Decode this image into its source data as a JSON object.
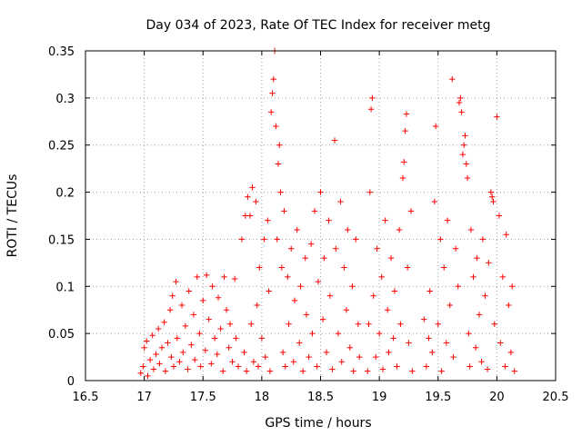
{
  "chart_data": {
    "type": "scatter",
    "title": "Day 034 of 2023, Rate Of TEC Index for receiver metg",
    "xlabel": "GPS time / hours",
    "ylabel": "ROTI / TECUs",
    "xlim": [
      16.5,
      20.5
    ],
    "ylim": [
      0,
      0.35
    ],
    "xticks": [
      16.5,
      17,
      17.5,
      18,
      18.5,
      19,
      19.5,
      20,
      20.5
    ],
    "xtick_labels": [
      "16.5",
      "17",
      "17.5",
      "18",
      "18.5",
      "19",
      "19.5",
      "20",
      "20.5"
    ],
    "yticks": [
      0,
      0.05,
      0.1,
      0.15,
      0.2,
      0.25,
      0.3,
      0.35
    ],
    "ytick_labels": [
      "0",
      "0.05",
      "0.1",
      "0.15",
      "0.2",
      "0.25",
      "0.3",
      "0.35"
    ],
    "grid": true,
    "marker": "+",
    "color": "#ff0000",
    "series": [
      {
        "name": "ROTI",
        "points": [
          [
            16.97,
            0.008
          ],
          [
            16.99,
            0.015
          ],
          [
            17.0,
            0.035
          ],
          [
            17.02,
            0.042
          ],
          [
            17.03,
            0.005
          ],
          [
            17.05,
            0.022
          ],
          [
            17.07,
            0.048
          ],
          [
            17.08,
            0.012
          ],
          [
            17.1,
            0.028
          ],
          [
            17.12,
            0.055
          ],
          [
            17.13,
            0.018
          ],
          [
            17.15,
            0.035
          ],
          [
            17.17,
            0.062
          ],
          [
            17.18,
            0.01
          ],
          [
            17.2,
            0.04
          ],
          [
            17.22,
            0.075
          ],
          [
            17.23,
            0.025
          ],
          [
            17.24,
            0.09
          ],
          [
            17.25,
            0.015
          ],
          [
            17.27,
            0.105
          ],
          [
            17.28,
            0.045
          ],
          [
            17.3,
            0.02
          ],
          [
            17.32,
            0.08
          ],
          [
            17.33,
            0.03
          ],
          [
            17.35,
            0.058
          ],
          [
            17.37,
            0.012
          ],
          [
            17.38,
            0.095
          ],
          [
            17.4,
            0.038
          ],
          [
            17.42,
            0.07
          ],
          [
            17.43,
            0.022
          ],
          [
            17.45,
            0.11
          ],
          [
            17.47,
            0.05
          ],
          [
            17.48,
            0.015
          ],
          [
            17.5,
            0.085
          ],
          [
            17.52,
            0.032
          ],
          [
            17.53,
            0.112
          ],
          [
            17.55,
            0.065
          ],
          [
            17.57,
            0.018
          ],
          [
            17.58,
            0.1
          ],
          [
            17.6,
            0.045
          ],
          [
            17.62,
            0.028
          ],
          [
            17.63,
            0.088
          ],
          [
            17.65,
            0.055
          ],
          [
            17.67,
            0.01
          ],
          [
            17.68,
            0.11
          ],
          [
            17.7,
            0.075
          ],
          [
            17.72,
            0.035
          ],
          [
            17.73,
            0.06
          ],
          [
            17.75,
            0.02
          ],
          [
            17.77,
            0.108
          ],
          [
            17.78,
            0.045
          ],
          [
            17.8,
            0.015
          ],
          [
            17.83,
            0.15
          ],
          [
            17.85,
            0.03
          ],
          [
            17.86,
            0.175
          ],
          [
            17.87,
            0.01
          ],
          [
            17.88,
            0.195
          ],
          [
            17.9,
            0.175
          ],
          [
            17.91,
            0.06
          ],
          [
            17.92,
            0.205
          ],
          [
            17.93,
            0.02
          ],
          [
            17.95,
            0.19
          ],
          [
            17.96,
            0.08
          ],
          [
            17.97,
            0.015
          ],
          [
            17.98,
            0.12
          ],
          [
            18.0,
            0.045
          ],
          [
            18.02,
            0.15
          ],
          [
            18.03,
            0.025
          ],
          [
            18.05,
            0.17
          ],
          [
            18.06,
            0.095
          ],
          [
            18.07,
            0.01
          ],
          [
            18.08,
            0.285
          ],
          [
            18.09,
            0.305
          ],
          [
            18.1,
            0.32
          ],
          [
            18.11,
            0.35
          ],
          [
            18.12,
            0.27
          ],
          [
            18.13,
            0.15
          ],
          [
            18.14,
            0.23
          ],
          [
            18.15,
            0.25
          ],
          [
            18.16,
            0.2
          ],
          [
            18.17,
            0.12
          ],
          [
            18.18,
            0.03
          ],
          [
            18.19,
            0.18
          ],
          [
            18.2,
            0.015
          ],
          [
            18.22,
            0.11
          ],
          [
            18.23,
            0.06
          ],
          [
            18.25,
            0.14
          ],
          [
            18.27,
            0.02
          ],
          [
            18.28,
            0.085
          ],
          [
            18.3,
            0.16
          ],
          [
            18.32,
            0.04
          ],
          [
            18.33,
            0.1
          ],
          [
            18.35,
            0.01
          ],
          [
            18.37,
            0.13
          ],
          [
            18.38,
            0.07
          ],
          [
            18.4,
            0.025
          ],
          [
            18.42,
            0.145
          ],
          [
            18.43,
            0.05
          ],
          [
            18.45,
            0.18
          ],
          [
            18.47,
            0.015
          ],
          [
            18.48,
            0.105
          ],
          [
            18.5,
            0.2
          ],
          [
            18.52,
            0.065
          ],
          [
            18.53,
            0.13
          ],
          [
            18.55,
            0.03
          ],
          [
            18.57,
            0.17
          ],
          [
            18.58,
            0.09
          ],
          [
            18.6,
            0.012
          ],
          [
            18.62,
            0.255
          ],
          [
            18.63,
            0.14
          ],
          [
            18.65,
            0.05
          ],
          [
            18.67,
            0.19
          ],
          [
            18.68,
            0.02
          ],
          [
            18.7,
            0.12
          ],
          [
            18.72,
            0.075
          ],
          [
            18.73,
            0.16
          ],
          [
            18.75,
            0.035
          ],
          [
            18.77,
            0.1
          ],
          [
            18.78,
            0.01
          ],
          [
            18.8,
            0.15
          ],
          [
            18.82,
            0.06
          ],
          [
            18.83,
            0.025
          ],
          [
            18.9,
            0.01
          ],
          [
            18.91,
            0.06
          ],
          [
            18.92,
            0.2
          ],
          [
            18.93,
            0.288
          ],
          [
            18.94,
            0.3
          ],
          [
            18.95,
            0.09
          ],
          [
            18.97,
            0.025
          ],
          [
            18.98,
            0.14
          ],
          [
            19.0,
            0.05
          ],
          [
            19.02,
            0.11
          ],
          [
            19.03,
            0.012
          ],
          [
            19.05,
            0.17
          ],
          [
            19.07,
            0.075
          ],
          [
            19.08,
            0.03
          ],
          [
            19.1,
            0.13
          ],
          [
            19.12,
            0.045
          ],
          [
            19.13,
            0.095
          ],
          [
            19.15,
            0.015
          ],
          [
            19.17,
            0.16
          ],
          [
            19.18,
            0.06
          ],
          [
            19.2,
            0.215
          ],
          [
            19.21,
            0.232
          ],
          [
            19.22,
            0.265
          ],
          [
            19.23,
            0.283
          ],
          [
            19.24,
            0.12
          ],
          [
            19.25,
            0.04
          ],
          [
            19.27,
            0.18
          ],
          [
            19.28,
            0.01
          ],
          [
            19.38,
            0.065
          ],
          [
            19.4,
            0.015
          ],
          [
            19.42,
            0.045
          ],
          [
            19.43,
            0.095
          ],
          [
            19.45,
            0.03
          ],
          [
            19.47,
            0.19
          ],
          [
            19.48,
            0.27
          ],
          [
            19.5,
            0.06
          ],
          [
            19.52,
            0.15
          ],
          [
            19.53,
            0.01
          ],
          [
            19.55,
            0.12
          ],
          [
            19.57,
            0.04
          ],
          [
            19.58,
            0.17
          ],
          [
            19.6,
            0.08
          ],
          [
            19.62,
            0.32
          ],
          [
            19.63,
            0.025
          ],
          [
            19.65,
            0.14
          ],
          [
            19.67,
            0.1
          ],
          [
            19.68,
            0.295
          ],
          [
            19.69,
            0.3
          ],
          [
            19.7,
            0.285
          ],
          [
            19.71,
            0.24
          ],
          [
            19.72,
            0.25
          ],
          [
            19.73,
            0.26
          ],
          [
            19.74,
            0.23
          ],
          [
            19.75,
            0.215
          ],
          [
            19.76,
            0.05
          ],
          [
            19.77,
            0.015
          ],
          [
            19.78,
            0.16
          ],
          [
            19.8,
            0.11
          ],
          [
            19.82,
            0.035
          ],
          [
            19.83,
            0.13
          ],
          [
            19.85,
            0.07
          ],
          [
            19.87,
            0.02
          ],
          [
            19.88,
            0.15
          ],
          [
            19.9,
            0.09
          ],
          [
            19.92,
            0.012
          ],
          [
            19.93,
            0.125
          ],
          [
            19.95,
            0.2
          ],
          [
            19.96,
            0.195
          ],
          [
            19.97,
            0.19
          ],
          [
            19.98,
            0.06
          ],
          [
            20.0,
            0.28
          ],
          [
            20.02,
            0.175
          ],
          [
            20.03,
            0.04
          ],
          [
            20.05,
            0.11
          ],
          [
            20.07,
            0.015
          ],
          [
            20.08,
            0.155
          ],
          [
            20.1,
            0.08
          ],
          [
            20.12,
            0.03
          ],
          [
            20.13,
            0.1
          ],
          [
            20.15,
            0.01
          ]
        ]
      }
    ]
  }
}
